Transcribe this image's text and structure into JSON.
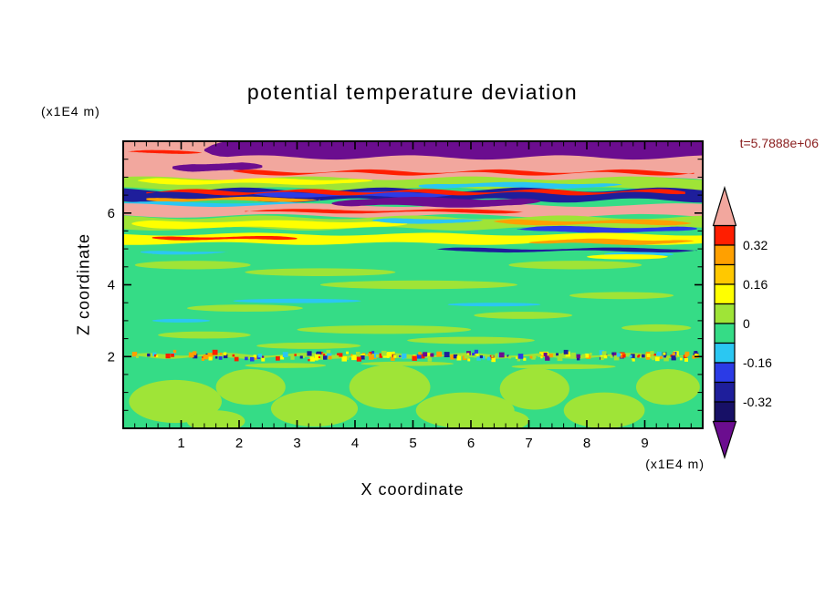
{
  "page": {
    "title": "potential temperature deviation",
    "timestamp": "t=5.7888e+06"
  },
  "axes": {
    "x": {
      "label": "X coordinate",
      "unit": "(x1E4 m)",
      "ticks": [
        "1",
        "2",
        "3",
        "4",
        "5",
        "6",
        "7",
        "8",
        "9"
      ],
      "range": [
        0,
        10
      ],
      "minor_step": 0.2
    },
    "z": {
      "label": "Z coordinate",
      "unit": "(x1E4 m)",
      "ticks": [
        "2",
        "4",
        "6"
      ],
      "range": [
        0,
        8
      ],
      "minor_step": 0.5
    }
  },
  "colorbar": {
    "labels": [
      "0.32",
      "0.16",
      "0",
      "-0.16",
      "-0.32"
    ],
    "label_boundaries": [
      1,
      3,
      5,
      7,
      9
    ],
    "cells": [
      {
        "color": "red",
        "range": [
          0.32,
          0.4
        ]
      },
      {
        "color": "orange",
        "range": [
          0.24,
          0.32
        ]
      },
      {
        "color": "amber",
        "range": [
          0.16,
          0.24
        ]
      },
      {
        "color": "yellow",
        "range": [
          0.08,
          0.16
        ]
      },
      {
        "color": "yellowgreen",
        "range": [
          0.0,
          0.08
        ]
      },
      {
        "color": "springgreen",
        "range": [
          -0.08,
          0.0
        ]
      },
      {
        "color": "cyan",
        "range": [
          -0.16,
          -0.08
        ]
      },
      {
        "color": "blue",
        "range": [
          -0.24,
          -0.16
        ]
      },
      {
        "color": "navy",
        "range": [
          -0.32,
          -0.24
        ]
      },
      {
        "color": "indigo",
        "range": [
          -0.4,
          -0.32
        ]
      }
    ],
    "arrows": {
      "top": {
        "color": "salmon",
        "range": "> 0.4"
      },
      "bottom": {
        "color": "purple",
        "range": "< -0.4"
      }
    }
  },
  "palette": {
    "springgreen": "#35DC86",
    "yellowgreen": "#9FE437",
    "yellow": "#FFFF00",
    "amber": "#FFC800",
    "orange": "#FFA000",
    "red": "#FF1E00",
    "salmon": "#F2A79E",
    "purple": "#6B0D8F",
    "navy": "#1E1E9B",
    "blue": "#2B3BE6",
    "cyan": "#2BC7F2",
    "indigo": "#171066",
    "axis": "#000000",
    "timestamp_text": "#8B2020"
  },
  "chart_data": {
    "type": "heatmap",
    "title": "potential temperature deviation",
    "xlabel": "X coordinate (x1E4 m)",
    "ylabel": "Z coordinate (x1E4 m)",
    "time_annotation": "t=5.7888e+06",
    "x_range": [
      0,
      10
    ],
    "z_range": [
      0,
      8
    ],
    "contour_levels": [
      -0.4,
      -0.32,
      -0.24,
      -0.16,
      -0.08,
      0,
      0.08,
      0.16,
      0.24,
      0.32,
      0.4
    ],
    "colorbar_tick_labels": [
      0.32,
      0.16,
      0,
      -0.16,
      -0.32
    ],
    "legend_position": "right",
    "description": "Filled contours of potential temperature deviation: strongly stratified multicolored wave layers between z=5 and z=8, near-zero (green) deviation through mid-domain, a thin speckled turbulent interface at z=2, and convective plume blobs below z=2.",
    "field": {
      "background": "springgreen",
      "band_format": [
        "color",
        "z_center",
        "thickness",
        "x0",
        "x1",
        "wave_amp",
        "wave_period",
        "phase"
      ],
      "bands": [
        [
          "salmon",
          7.5,
          1.1,
          0.0,
          10.0,
          0.04,
          3.0,
          0.0
        ],
        [
          "purple",
          7.8,
          0.5,
          1.4,
          10.0,
          0.06,
          2.6,
          1.0
        ],
        [
          "red",
          7.7,
          0.07,
          0.08,
          1.35,
          0.02,
          2.0,
          0.0
        ],
        [
          "purple",
          7.28,
          0.22,
          0.85,
          2.4,
          0.03,
          2.0,
          0.5
        ],
        [
          "red",
          7.13,
          0.07,
          1.9,
          9.85,
          0.05,
          2.2,
          2.0
        ],
        [
          "yellowgreen",
          6.82,
          0.3,
          0.0,
          10.0,
          0.05,
          2.8,
          0.7
        ],
        [
          "yellow",
          6.88,
          0.13,
          0.25,
          4.3,
          0.03,
          2.0,
          0.0
        ],
        [
          "cyan",
          6.77,
          0.13,
          5.1,
          8.6,
          0.03,
          2.2,
          1.2
        ],
        [
          "navy",
          6.5,
          0.3,
          0.0,
          10.0,
          0.06,
          2.4,
          2.4
        ],
        [
          "blue",
          6.52,
          0.12,
          2.2,
          5.8,
          0.03,
          2.0,
          0.3
        ],
        [
          "red",
          6.58,
          0.08,
          0.4,
          9.7,
          0.05,
          2.0,
          4.0
        ],
        [
          "orange",
          6.38,
          0.09,
          0.4,
          3.4,
          0.03,
          2.0,
          1.0
        ],
        [
          "cyan",
          6.22,
          0.15,
          0.0,
          3.1,
          0.03,
          2.5,
          0.0
        ],
        [
          "salmon",
          6.07,
          0.3,
          0.0,
          10.0,
          0.05,
          3.2,
          1.6
        ],
        [
          "purple",
          6.3,
          0.22,
          3.6,
          7.2,
          0.04,
          2.4,
          0.9
        ],
        [
          "red",
          6.05,
          0.07,
          2.1,
          6.9,
          0.03,
          2.6,
          0.4
        ],
        [
          "yellowgreen",
          5.72,
          0.32,
          0.0,
          10.0,
          0.05,
          2.6,
          2.1
        ],
        [
          "yellow",
          5.68,
          0.18,
          0.15,
          4.9,
          0.03,
          2.4,
          0.9
        ],
        [
          "cyan",
          5.78,
          0.12,
          4.3,
          6.2,
          0.02,
          2.0,
          0.0
        ],
        [
          "orange",
          5.74,
          0.11,
          6.4,
          9.8,
          0.03,
          2.2,
          1.5
        ],
        [
          "blue",
          5.54,
          0.14,
          6.8,
          9.9,
          0.03,
          2.4,
          0.6
        ],
        [
          "yellow",
          5.28,
          0.26,
          0.0,
          10.0,
          0.04,
          3.0,
          3.1
        ],
        [
          "red",
          5.3,
          0.08,
          0.5,
          3.0,
          0.02,
          2.0,
          0.2
        ],
        [
          "orange",
          5.2,
          0.12,
          7.0,
          9.85,
          0.03,
          2.0,
          1.1
        ],
        [
          "navy",
          4.97,
          0.08,
          5.4,
          9.9,
          0.03,
          2.6,
          0.0
        ],
        [
          "cyan",
          4.9,
          0.08,
          0.3,
          1.8,
          0.02,
          2.0,
          0.7
        ],
        [
          "yellowgreen",
          2.02,
          0.09,
          0.1,
          9.9,
          0.04,
          1.4,
          0.0
        ]
      ],
      "blob_format": [
        "x",
        "z",
        "rx",
        "rz"
      ],
      "blob_groups": [
        {
          "color": "yellowgreen",
          "items": [
            [
              1.2,
              4.55,
              1.0,
              0.12
            ],
            [
              3.4,
              4.35,
              1.3,
              0.11
            ],
            [
              7.8,
              4.55,
              1.15,
              0.12
            ],
            [
              5.1,
              4.0,
              1.7,
              0.12
            ],
            [
              2.1,
              3.35,
              1.0,
              0.1
            ],
            [
              8.6,
              3.7,
              0.9,
              0.1
            ],
            [
              4.5,
              2.75,
              1.5,
              0.12
            ],
            [
              6.9,
              3.15,
              0.85,
              0.1
            ],
            [
              1.4,
              2.6,
              0.8,
              0.1
            ],
            [
              9.2,
              2.8,
              0.6,
              0.1
            ],
            [
              3.2,
              2.3,
              0.9,
              0.09
            ],
            [
              6.0,
              2.45,
              1.1,
              0.1
            ]
          ]
        },
        {
          "color": "cyan",
          "items": [
            [
              3.0,
              3.55,
              1.1,
              0.06
            ],
            [
              6.4,
              3.45,
              0.8,
              0.05
            ],
            [
              8.9,
              4.85,
              0.6,
              0.06
            ],
            [
              1.0,
              3.0,
              0.5,
              0.05
            ]
          ]
        },
        {
          "color": "yellow",
          "items": [
            [
              8.7,
              4.78,
              0.7,
              0.07
            ]
          ]
        },
        {
          "color": "yellowgreen",
          "items": [
            [
              0.9,
              0.75,
              0.8,
              0.6
            ],
            [
              2.2,
              1.15,
              0.6,
              0.5
            ],
            [
              3.3,
              0.55,
              0.75,
              0.5
            ],
            [
              4.6,
              1.15,
              0.7,
              0.62
            ],
            [
              5.9,
              0.5,
              0.85,
              0.5
            ],
            [
              7.1,
              1.1,
              0.6,
              0.58
            ],
            [
              8.3,
              0.5,
              0.7,
              0.5
            ],
            [
              9.4,
              1.15,
              0.55,
              0.5
            ],
            [
              1.6,
              0.2,
              0.5,
              0.3
            ],
            [
              6.5,
              0.22,
              0.5,
              0.3
            ],
            [
              2.8,
              1.75,
              0.7,
              0.07
            ],
            [
              7.6,
              1.72,
              0.9,
              0.07
            ],
            [
              4.9,
              1.8,
              0.8,
              0.06
            ]
          ]
        }
      ],
      "speckles": {
        "z": 2.02,
        "jitter": 0.13,
        "x0": 0.15,
        "x1": 9.9,
        "count": 230,
        "seed": 12,
        "size_min": 2,
        "size_max": 6,
        "right_bias": 0.75,
        "colors": [
          [
            "yellow",
            3
          ],
          [
            "orange",
            2
          ],
          [
            "red",
            2
          ],
          [
            "navy",
            2
          ],
          [
            "blue",
            1
          ],
          [
            "purple",
            1
          ],
          [
            "cyan",
            1
          ],
          [
            "yellowgreen",
            3
          ]
        ]
      }
    }
  }
}
